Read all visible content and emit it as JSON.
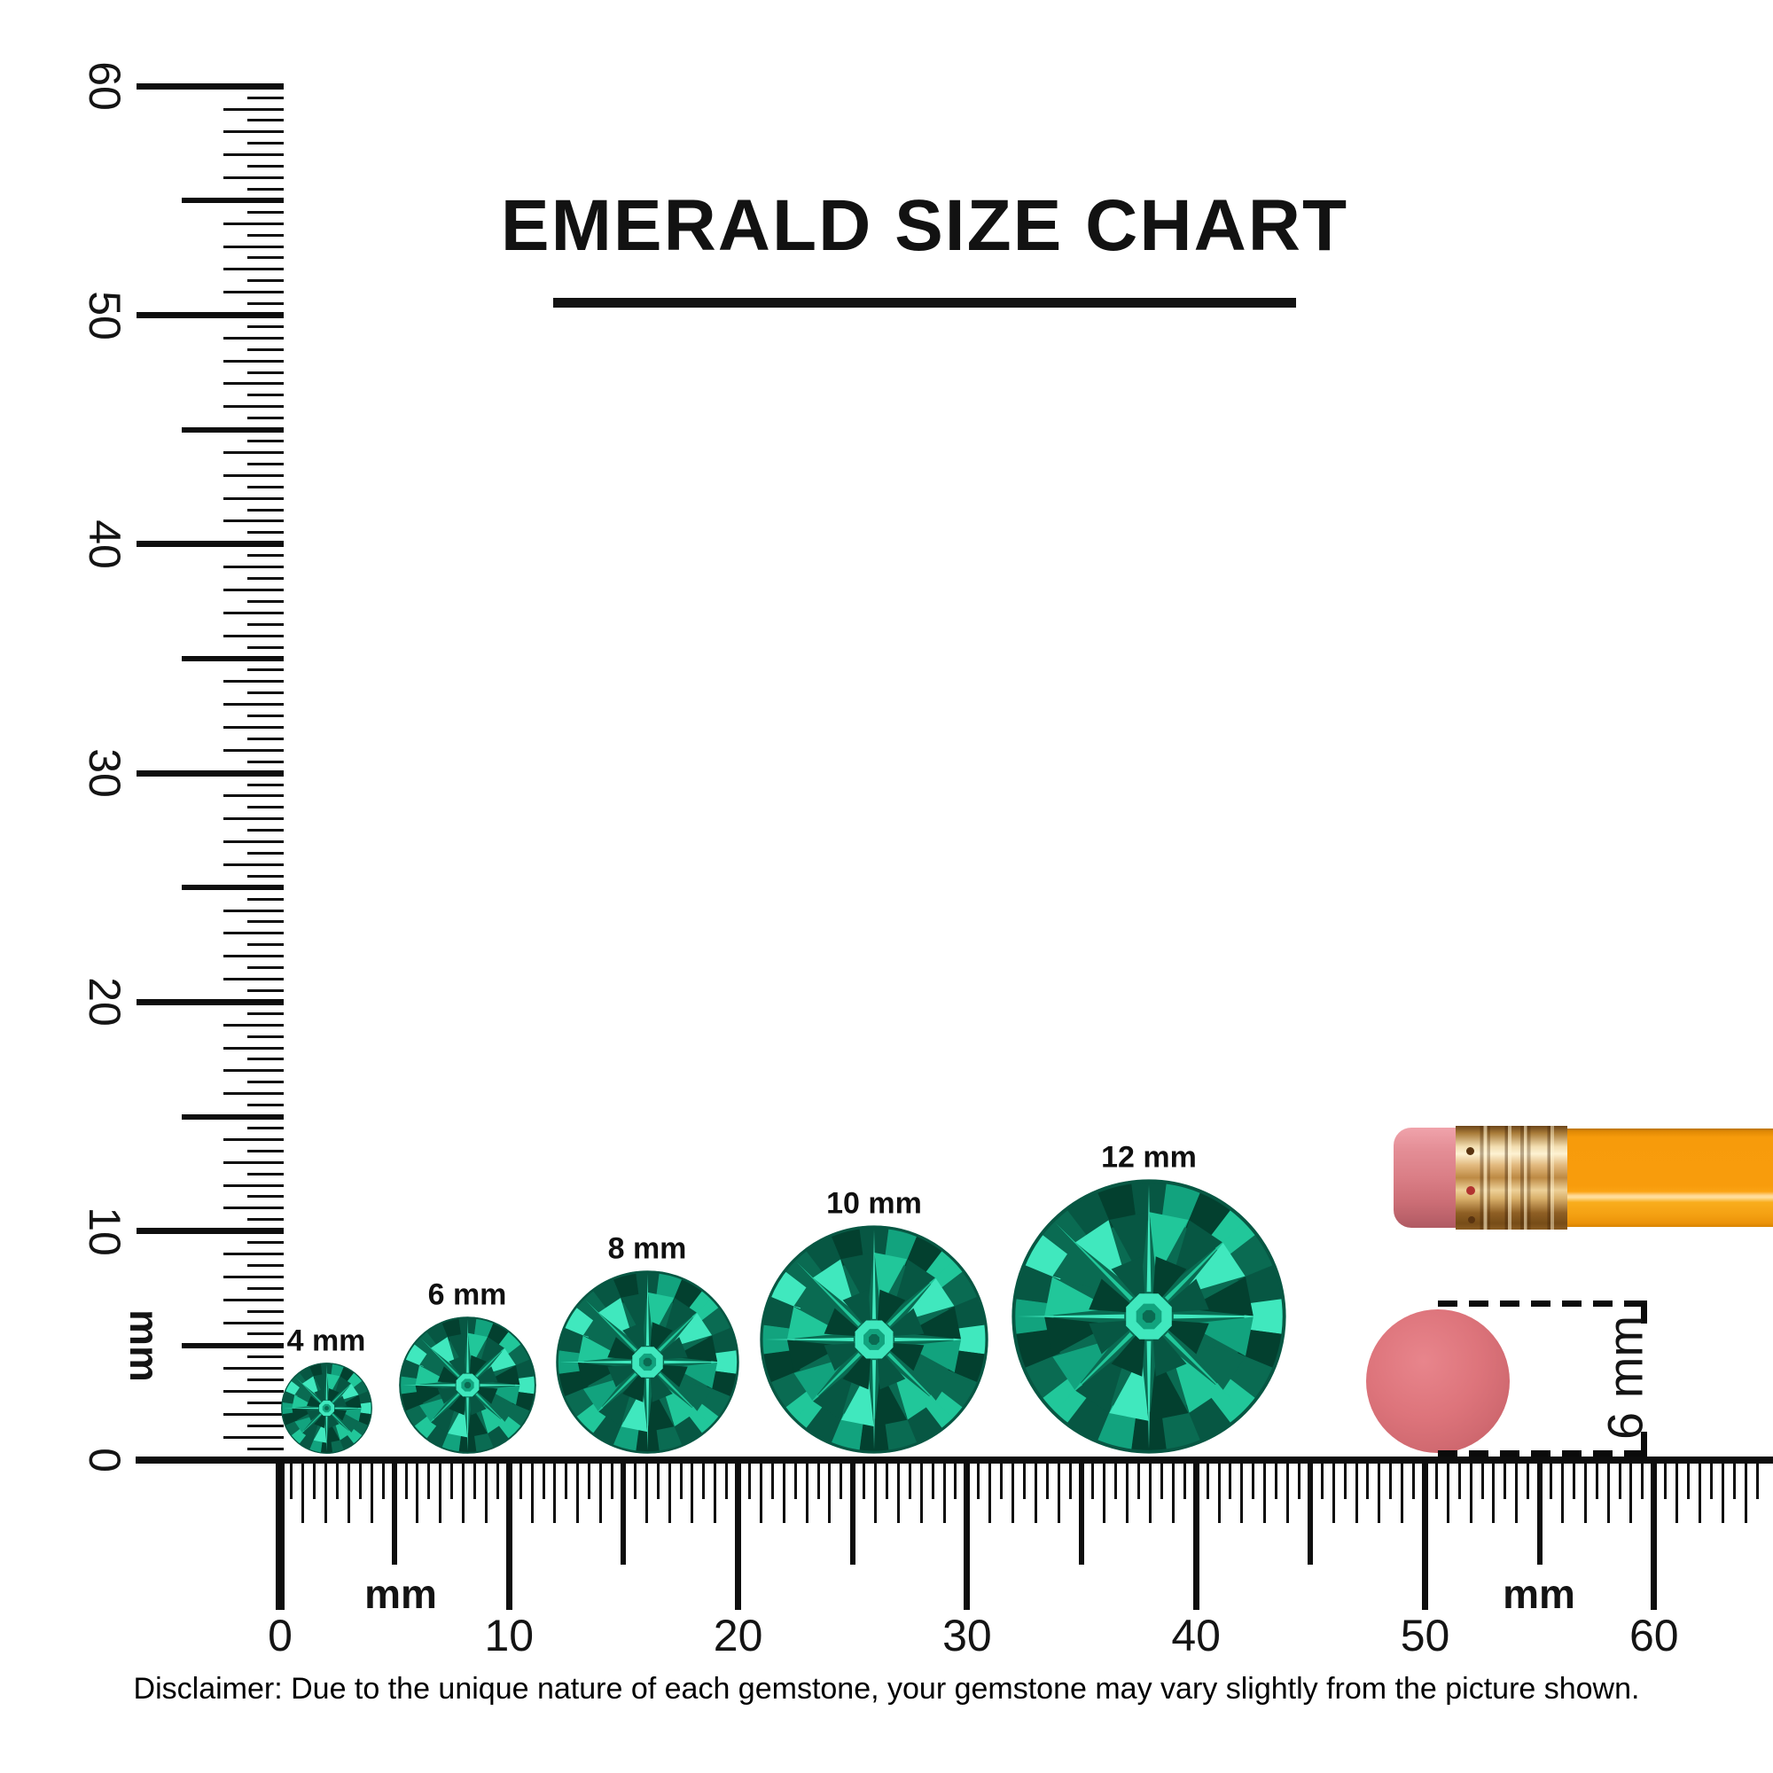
{
  "title": "EMERALD SIZE CHART",
  "disclaimer": "Disclaimer: Due to the unique nature of each gemstone, your gemstone may vary slightly from the picture shown.",
  "vertical_ruler": {
    "unit_label": "mm",
    "tick_labels": [
      "0",
      "10",
      "20",
      "30",
      "40",
      "50",
      "60"
    ],
    "range_mm": [
      0,
      60
    ]
  },
  "horizontal_ruler": {
    "unit_label_left": "mm",
    "unit_label_right": "mm",
    "tick_labels": [
      "0",
      "10",
      "20",
      "30",
      "40",
      "50",
      "60"
    ],
    "range_mm": [
      0,
      64.5
    ]
  },
  "gems": [
    {
      "label": "4 mm",
      "size_mm": 4
    },
    {
      "label": "6 mm",
      "size_mm": 6
    },
    {
      "label": "8 mm",
      "size_mm": 8
    },
    {
      "label": "10 mm",
      "size_mm": 10
    },
    {
      "label": "12 mm",
      "size_mm": 12
    }
  ],
  "eraser_comparison": {
    "label": "6 mm",
    "diameter_mm": 6
  },
  "colors": {
    "emerald_darkest": "#03402f",
    "emerald_dark": "#075743",
    "emerald_deep": "#0a6b52",
    "emerald_mid": "#12a37e",
    "emerald_light": "#21c79a",
    "emerald_bright": "#40e8be",
    "eraser_pink": "#dd747b",
    "pencil_orange": "#f89c0c",
    "ferrule_gold": "#d9b06b",
    "ink": "#0e0e0e"
  }
}
